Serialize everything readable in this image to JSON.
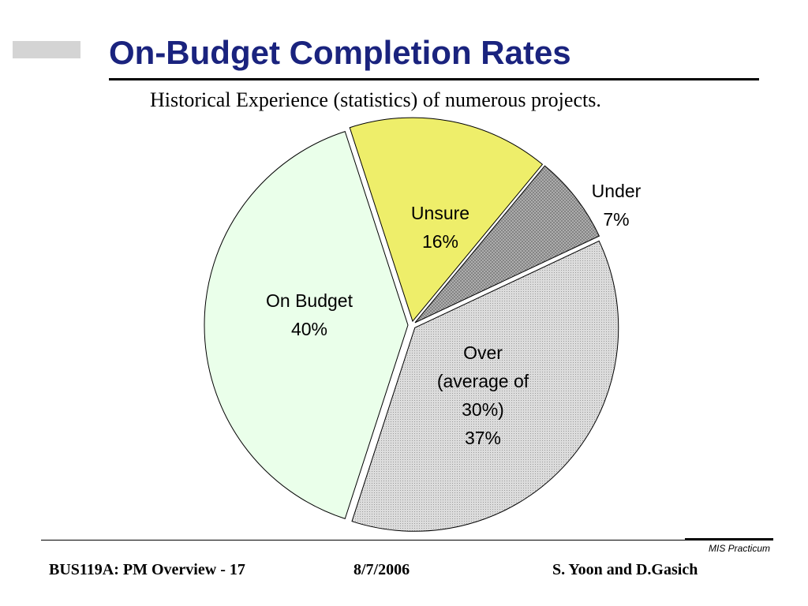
{
  "slide": {
    "title": "On-Budget Completion Rates",
    "subtitle": "Historical Experience (statistics) of numerous projects."
  },
  "chart_data": {
    "type": "pie",
    "slices": [
      {
        "label_lines": [
          "Unsure",
          "16%"
        ],
        "value": 16,
        "color": "#eeee6a",
        "pattern": "solid"
      },
      {
        "label_lines": [
          "Under",
          "7%"
        ],
        "value": 7,
        "color": "#a8a8a8",
        "pattern": "crosshatch"
      },
      {
        "label_lines": [
          "Over",
          "(average of",
          "30%)",
          "37%"
        ],
        "value": 37,
        "color": "#d0d0d0",
        "pattern": "fine-dots"
      },
      {
        "label_lines": [
          "On Budget",
          "40%"
        ],
        "value": 40,
        "color": "#eaffea",
        "pattern": "solid"
      }
    ]
  },
  "footer": {
    "brand": "MIS Practicum",
    "course": "BUS119A: PM Overview - 17",
    "date": "8/7/2006",
    "authors": "S. Yoon and D.Gasich"
  }
}
